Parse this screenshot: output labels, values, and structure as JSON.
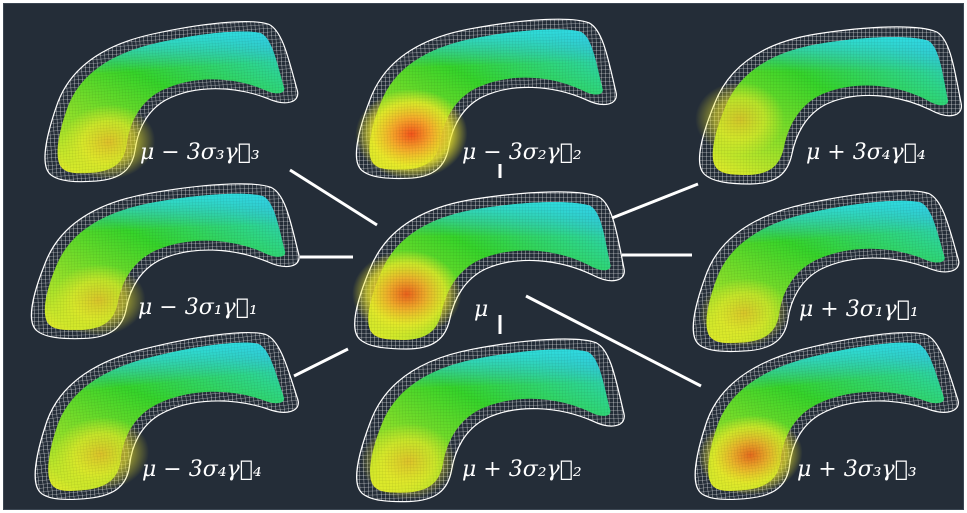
{
  "figure": {
    "background": "#242d38",
    "connector_color": "#ffffff",
    "mesh_color": "#ffffff",
    "colormap": [
      "#f2541b",
      "#f6b62a",
      "#f2ea2a",
      "#9ee22a",
      "#32d62a",
      "#2ee0d2",
      "#36b8f0"
    ],
    "center_label": "μ",
    "shapes": [
      {
        "id": "shape-minus-3sigma3-gamma3",
        "label": "μ − 3σ₃γ⃗₃",
        "hotspot": 0.45
      },
      {
        "id": "shape-minus-3sigma2-gamma2",
        "label": "μ − 3σ₂γ⃗₂",
        "hotspot": 1.0
      },
      {
        "id": "shape-plus-3sigma4-gamma4",
        "label": "μ + 3σ₄γ⃗₄",
        "hotspot": 0.25
      },
      {
        "id": "shape-minus-3sigma1-gamma1",
        "label": "μ − 3σ₁γ⃗₁",
        "hotspot": 0.3
      },
      {
        "id": "shape-mean",
        "label": "μ",
        "hotspot": 0.8
      },
      {
        "id": "shape-plus-3sigma1-gamma1",
        "label": "μ + 3σ₁γ⃗₁",
        "hotspot": 0.2
      },
      {
        "id": "shape-minus-3sigma4-gamma4",
        "label": "μ − 3σ₄γ⃗₄",
        "hotspot": 0.4
      },
      {
        "id": "shape-plus-3sigma2-gamma2",
        "label": "μ + 3σ₂γ⃗₂",
        "hotspot": 0.35
      },
      {
        "id": "shape-plus-3sigma3-gamma3",
        "label": "μ + 3σ₃γ⃗₃",
        "hotspot": 0.65
      }
    ]
  }
}
